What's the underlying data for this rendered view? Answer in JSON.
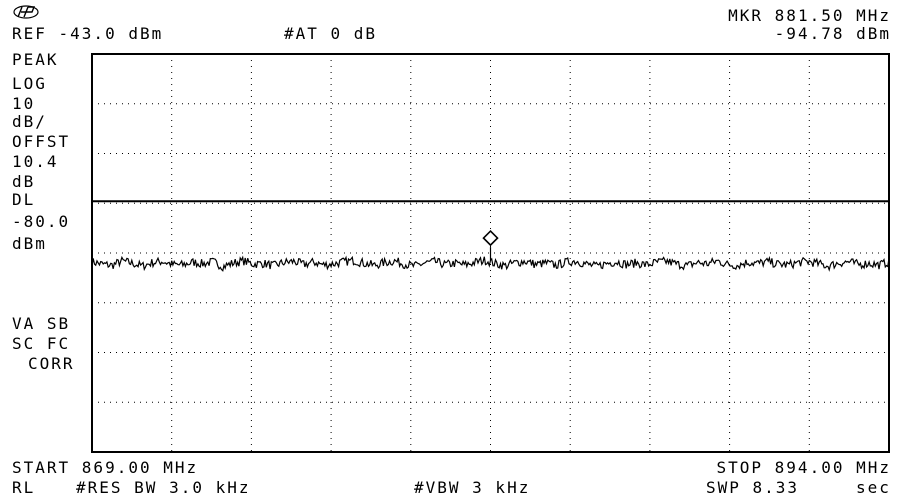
{
  "header": {
    "logo_icon": "hp-logo-icon",
    "ref_label": "REF -43.0 dBm",
    "attenuation": "#AT 0 dB",
    "marker_freq": "MKR 881.50 MHz",
    "marker_level": "-94.78 dBm"
  },
  "sidebar": {
    "detector": "PEAK",
    "scale_type": "LOG",
    "scale_value": "10",
    "scale_unit": "dB/",
    "offset_label": "OFFST",
    "offset_value": "10.4",
    "offset_unit": "dB",
    "display_line_label": "DL",
    "display_line_value": "-80.0",
    "display_line_unit": "dBm",
    "trace_flags": "VA SB",
    "sc_flags": "SC FC",
    "corr": "CORR"
  },
  "footer": {
    "start": "START 869.00 MHz",
    "stop": "STOP 894.00 MHz",
    "rl": "RL",
    "rbw": "#RES BW 3.0 kHz",
    "vbw": "#VBW 3 kHz",
    "sweep": "SWP 8.33",
    "sweep_unit": "sec"
  },
  "chart_data": {
    "type": "line",
    "title": "",
    "xlabel": "",
    "ylabel": "",
    "x_range_mhz": [
      869.0,
      894.0
    ],
    "y_range_dbm": [
      -143.0,
      -43.0
    ],
    "y_divisions_db": 10,
    "grid": true,
    "display_line_dbm": -80.0,
    "marker": {
      "x_mhz": 881.5,
      "y_dbm": -94.78
    },
    "noise_floor_dbm_approx": -95.5,
    "series": [
      {
        "values_dbm_sampled": [
          -95.2,
          -95.8,
          -96.1,
          -95.0,
          -95.6,
          -96.3,
          -95.4,
          -95.1,
          -95.9,
          -96.0,
          -95.3,
          -95.7,
          -95.2,
          -96.4,
          -95.5,
          -95.0,
          -95.8,
          -95.6,
          -96.2,
          -95.4,
          -95.1,
          -95.9,
          -95.3,
          -96.0,
          -95.7,
          -95.2,
          -94.9,
          -95.6,
          -96.1,
          -95.4,
          -95.0,
          -95.8,
          -96.3,
          -95.5,
          -95.2,
          -95.9,
          -95.6,
          -96.0,
          -95.3,
          -94.8,
          -95.7,
          -96.2,
          -95.4,
          -95.1,
          -95.9,
          -95.5,
          -96.1,
          -95.3,
          -95.0,
          -95.8,
          -96.4,
          -95.6,
          -95.2,
          -95.9,
          -95.5,
          -96.0,
          -95.3,
          -95.1,
          -95.8,
          -96.2,
          -95.4,
          -95.7,
          -95.0,
          -95.9,
          -96.1,
          -95.3,
          -95.6,
          -95.2,
          -95.8,
          -96.0,
          -95.4,
          -95.1,
          -95.7,
          -96.3,
          -95.5,
          -95.2,
          -95.9,
          -95.6,
          -96.0,
          -95.3
        ]
      }
    ]
  }
}
